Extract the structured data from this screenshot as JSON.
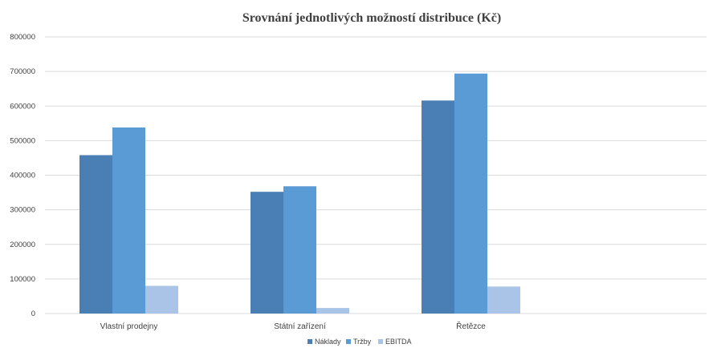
{
  "chart_data": {
    "type": "bar",
    "title": "Srovnání jednotlivých možností distribuce (Kč)",
    "xlabel": "",
    "ylabel": "",
    "categories": [
      "Vlastní prodejny",
      "Státní zařízení",
      "Řetězce"
    ],
    "series": [
      {
        "name": "Náklady",
        "values": [
          458000,
          352000,
          616000
        ],
        "color": "#4a7fb5"
      },
      {
        "name": "Tržby",
        "values": [
          538000,
          368000,
          694000
        ],
        "color": "#5b9bd5"
      },
      {
        "name": "EBITDA",
        "values": [
          80000,
          16000,
          78000
        ],
        "color": "#a9c4e6"
      }
    ],
    "ylim": [
      0,
      800000
    ],
    "yticks": [
      "0",
      "100000",
      "200000",
      "300000",
      "400000",
      "500000",
      "600000",
      "700000",
      "800000"
    ],
    "grid": true,
    "legend_position": "bottom-center"
  }
}
